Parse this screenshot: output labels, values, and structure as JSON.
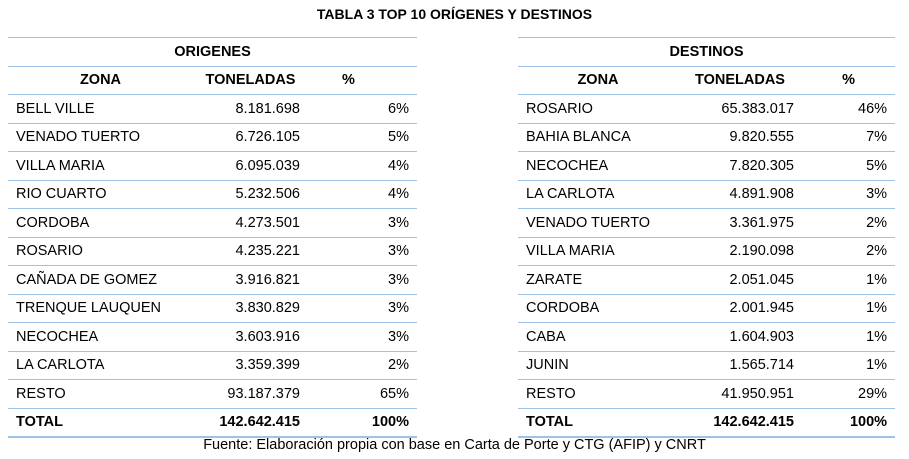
{
  "title": "TABLA 3 TOP 10 ORÍGENES Y DESTINOS",
  "source": "Fuente: Elaboración propia con base en Carta de Porte y CTG (AFIP) y CNRT",
  "columns": {
    "zona": "ZONA",
    "toneladas": "TONELADAS",
    "pct": "%"
  },
  "origenes": {
    "header": "ORIGENES",
    "rows": [
      {
        "zona": "BELL VILLE",
        "toneladas": "8.181.698",
        "pct": "6%"
      },
      {
        "zona": "VENADO TUERTO",
        "toneladas": "6.726.105",
        "pct": "5%"
      },
      {
        "zona": "VILLA MARIA",
        "toneladas": "6.095.039",
        "pct": "4%"
      },
      {
        "zona": "RIO CUARTO",
        "toneladas": "5.232.506",
        "pct": "4%"
      },
      {
        "zona": "CORDOBA",
        "toneladas": "4.273.501",
        "pct": "3%"
      },
      {
        "zona": "ROSARIO",
        "toneladas": "4.235.221",
        "pct": "3%"
      },
      {
        "zona": "CAÑADA DE GOMEZ",
        "toneladas": "3.916.821",
        "pct": "3%"
      },
      {
        "zona": "TRENQUE LAUQUEN",
        "toneladas": "3.830.829",
        "pct": "3%"
      },
      {
        "zona": "NECOCHEA",
        "toneladas": "3.603.916",
        "pct": "3%"
      },
      {
        "zona": "LA CARLOTA",
        "toneladas": "3.359.399",
        "pct": "2%"
      },
      {
        "zona": "RESTO",
        "toneladas": "93.187.379",
        "pct": "65%"
      }
    ],
    "total": {
      "zona": "TOTAL",
      "toneladas": "142.642.415",
      "pct": "100%"
    }
  },
  "destinos": {
    "header": "DESTINOS",
    "rows": [
      {
        "zona": "ROSARIO",
        "toneladas": "65.383.017",
        "pct": "46%"
      },
      {
        "zona": "BAHIA BLANCA",
        "toneladas": "9.820.555",
        "pct": "7%"
      },
      {
        "zona": "NECOCHEA",
        "toneladas": "7.820.305",
        "pct": "5%"
      },
      {
        "zona": "LA CARLOTA",
        "toneladas": "4.891.908",
        "pct": "3%"
      },
      {
        "zona": "VENADO TUERTO",
        "toneladas": "3.361.975",
        "pct": "2%"
      },
      {
        "zona": "VILLA MARIA",
        "toneladas": "2.190.098",
        "pct": "2%"
      },
      {
        "zona": "ZARATE",
        "toneladas": "2.051.045",
        "pct": "1%"
      },
      {
        "zona": "CORDOBA",
        "toneladas": "2.001.945",
        "pct": "1%"
      },
      {
        "zona": "CABA",
        "toneladas": "1.604.903",
        "pct": "1%"
      },
      {
        "zona": "JUNIN",
        "toneladas": "1.565.714",
        "pct": "1%"
      },
      {
        "zona": "RESTO",
        "toneladas": "41.950.951",
        "pct": "29%"
      }
    ],
    "total": {
      "zona": "TOTAL",
      "toneladas": "142.642.415",
      "pct": "100%"
    }
  },
  "colors": {
    "rule": "#9dc3e6"
  }
}
